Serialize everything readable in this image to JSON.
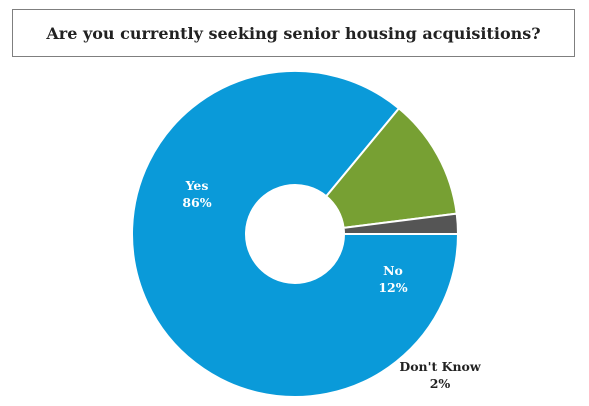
{
  "chart_data": {
    "type": "pie",
    "title": "Are you currently seeking senior housing acquisitions?",
    "categories": [
      "Yes",
      "No",
      "Don't Know"
    ],
    "values": [
      86,
      12,
      2
    ],
    "value_labels": [
      "86%",
      "12%",
      "2%"
    ],
    "colors": [
      "#0a9ad9",
      "#77a033",
      "#555555"
    ],
    "label_colors": [
      "#ffffff",
      "#ffffff",
      "#222222"
    ],
    "donut": true,
    "start_angle_deg": 0,
    "direction": "clockwise",
    "legend": "none"
  }
}
